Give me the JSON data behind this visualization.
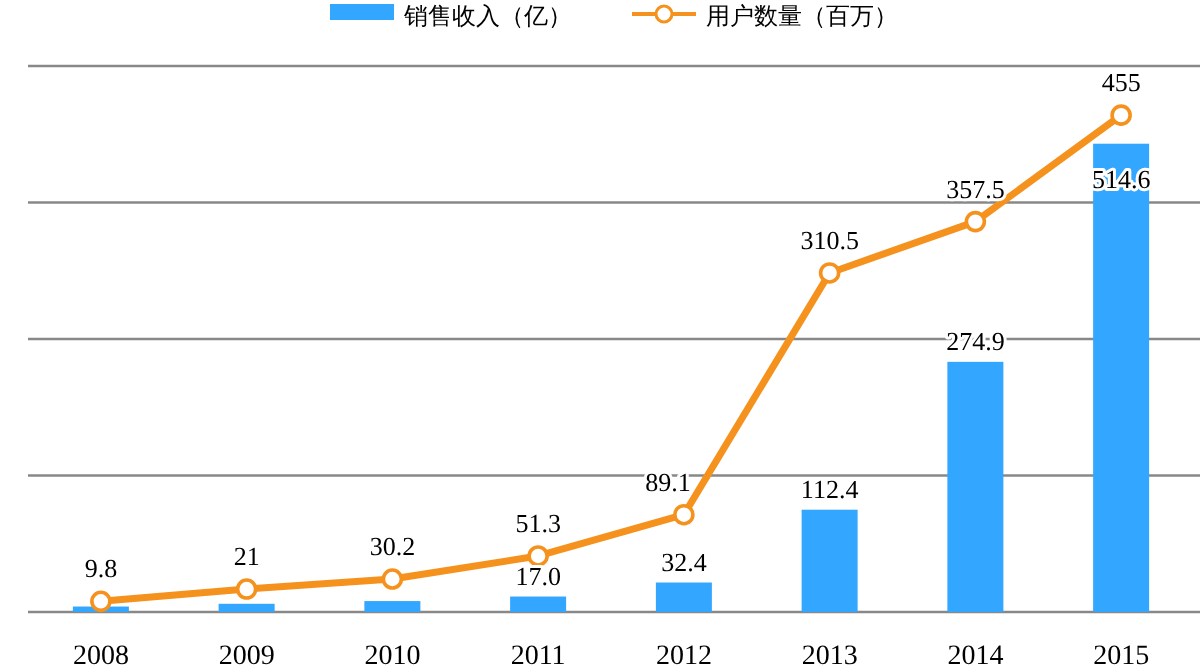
{
  "chart_data": {
    "type": "bar",
    "categories": [
      "2008",
      "2009",
      "2010",
      "2011",
      "2012",
      "2013",
      "2014",
      "2015"
    ],
    "series": [
      {
        "name": "销售收入（亿）",
        "color": "#33a6ff",
        "values": [
          6,
          9,
          12,
          17.0,
          32.4,
          112.4,
          274.9,
          514.6
        ],
        "value_labels": [
          null,
          null,
          null,
          "17.0",
          "32.4",
          "112.4",
          "274.9",
          "514.6"
        ]
      },
      {
        "name": "用户数量（百万）",
        "type": "line",
        "axis": "y2",
        "color": "#f5921e",
        "marker": "circle",
        "values": [
          9.8,
          21,
          30.2,
          51.3,
          89.1,
          310.5,
          357.5,
          455
        ],
        "value_labels": [
          "9.8",
          "21",
          "30.2",
          "51.3",
          "89.1",
          "310.5",
          "357.5",
          "455"
        ]
      }
    ],
    "ylim": [
      0,
      600
    ],
    "yticks": [
      {
        "value": 0,
        "label": null
      },
      {
        "value": 150,
        "label": null
      },
      {
        "value": 300,
        "label": null
      },
      {
        "value": 450,
        "label": null
      },
      {
        "value": 600,
        "label": null
      }
    ],
    "y2lim": [
      0,
      500
    ],
    "grid": "y",
    "tick_labels": "x",
    "legend": "top"
  }
}
